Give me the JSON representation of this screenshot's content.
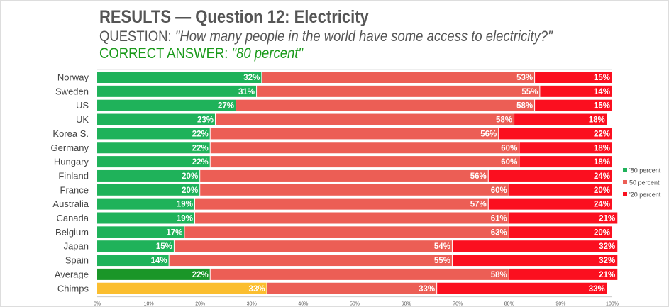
{
  "header": {
    "title": "RESULTS — Question 12: Electricity",
    "question_prefix": "QUESTION: ",
    "question": "\"How many people in the world have some access to electricity?\"",
    "answer_prefix": "CORRECT ANSWER: ",
    "answer": "\"80 percent\""
  },
  "chart_data": {
    "type": "bar",
    "stacked": true,
    "orientation": "horizontal",
    "categories": [
      "Norway",
      "Sweden",
      "US",
      "UK",
      "Korea S.",
      "Germany",
      "Hungary",
      "Finland",
      "France",
      "Australia",
      "Canada",
      "Belgium",
      "Japan",
      "Spain",
      "Average",
      "Chimps"
    ],
    "series": [
      {
        "name": "'80 percent",
        "color": "#1fb25a",
        "values": [
          32,
          31,
          27,
          23,
          22,
          22,
          22,
          20,
          20,
          19,
          19,
          17,
          15,
          14,
          22,
          33
        ]
      },
      {
        "name": "50 percent",
        "color": "#ec5e55",
        "values": [
          53,
          55,
          58,
          58,
          56,
          60,
          60,
          56,
          60,
          57,
          61,
          63,
          54,
          55,
          58,
          33
        ]
      },
      {
        "name": "'20 percent",
        "color": "#fb0f1f",
        "values": [
          15,
          14,
          15,
          18,
          22,
          18,
          18,
          24,
          20,
          24,
          21,
          20,
          32,
          32,
          21,
          33
        ]
      }
    ],
    "special_colors": {
      "Average": "#1a9628",
      "Chimps": "#fbbe2f"
    },
    "xlim": [
      0,
      100
    ],
    "xticks": [
      "0%",
      "10%",
      "20%",
      "30%",
      "40%",
      "50%",
      "60%",
      "70%",
      "80%",
      "90%",
      "100%"
    ],
    "legend": "right"
  }
}
